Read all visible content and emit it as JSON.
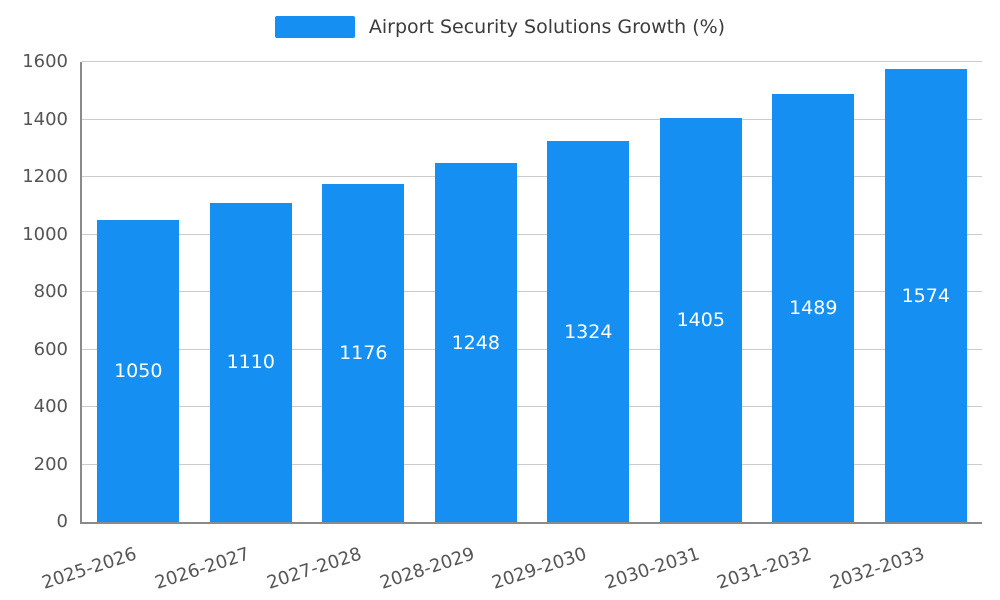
{
  "chart_data": {
    "type": "bar",
    "title": "Airport Security Solutions Growth (%)",
    "categories": [
      "2025-2026",
      "2026-2027",
      "2027-2028",
      "2028-2029",
      "2029-2030",
      "2030-2031",
      "2031-2032",
      "2032-2033"
    ],
    "values": [
      1050,
      1110,
      1176,
      1248,
      1324,
      1405,
      1489,
      1574
    ],
    "ylim": [
      0,
      1600
    ],
    "yticks": [
      0,
      200,
      400,
      600,
      800,
      1000,
      1200,
      1400,
      1600
    ],
    "grid": true,
    "legend_position": "top",
    "bar_color": "#1590F2",
    "bar_label_color": "#ffffff",
    "axis_text_color": "#555555",
    "legend_text_color": "#3c3c3c"
  }
}
